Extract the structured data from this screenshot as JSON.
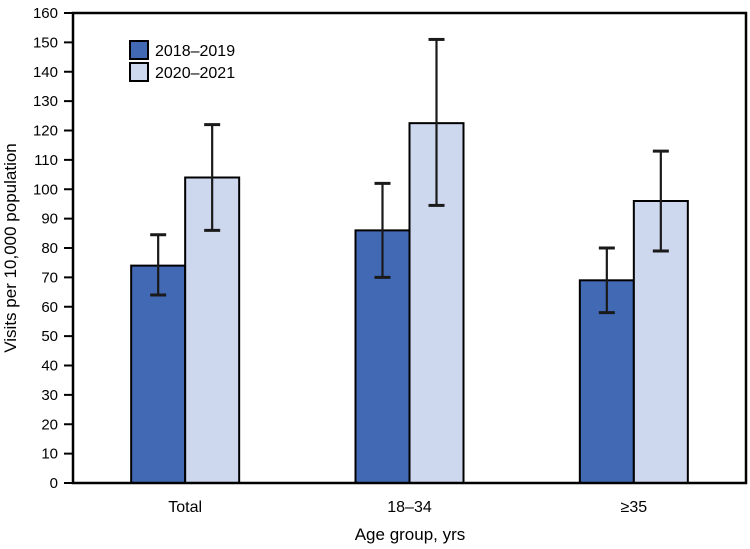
{
  "figure": {
    "background": "#ffffff"
  },
  "chart_data": {
    "type": "bar",
    "title": "",
    "ylabel": "Visits per 10,000 population",
    "xlabel": "Age group, yrs",
    "categories": [
      "Total",
      "18–34",
      "≥35"
    ],
    "series": [
      {
        "name": "2018–2019",
        "color": "#4169b4",
        "values": [
          74,
          86,
          69
        ],
        "ci_low": [
          64,
          70,
          58
        ],
        "ci_high": [
          84.5,
          102,
          80
        ]
      },
      {
        "name": "2020–2021",
        "color": "#cdd7ee",
        "values": [
          104,
          122.5,
          96
        ],
        "ci_low": [
          86,
          94.5,
          79
        ],
        "ci_high": [
          122,
          151,
          113
        ]
      }
    ],
    "ylim": [
      0,
      160
    ],
    "yticks": [
      0,
      10,
      20,
      30,
      40,
      50,
      60,
      70,
      80,
      90,
      100,
      110,
      120,
      130,
      140,
      150,
      160
    ],
    "legend_position": "top-left-inside",
    "grid": false,
    "error_bars": true,
    "axis_color": "#000000",
    "bar_border_color": "#000000",
    "error_bar_color": "#1a1a1a"
  }
}
